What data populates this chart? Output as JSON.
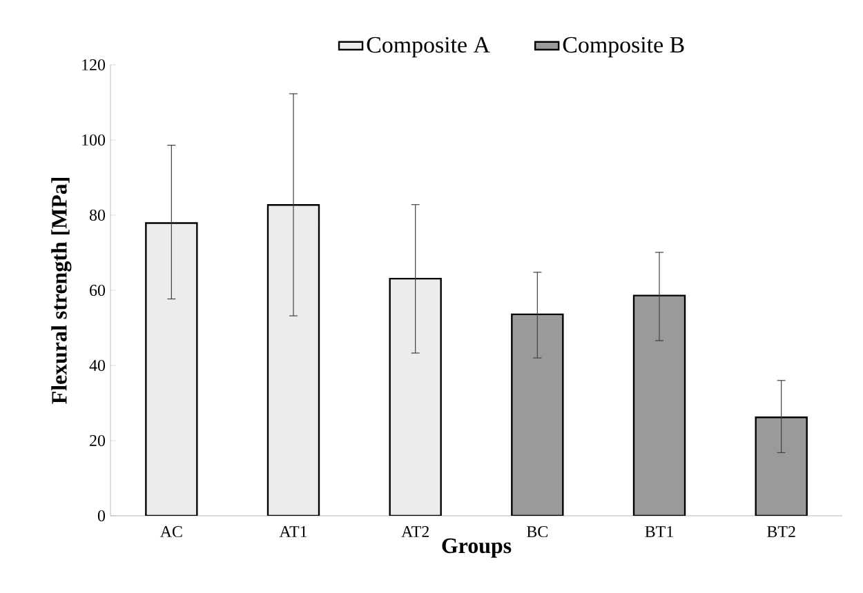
{
  "chart_data": {
    "type": "bar",
    "xlabel": "Groups",
    "ylabel": "Flexural strength [MPa]",
    "categories": [
      "AC",
      "AT1",
      "AT2",
      "BC",
      "BT1",
      "BT2"
    ],
    "series": [
      {
        "name": "Composite A",
        "color": "#ececec",
        "values": [
          77.9,
          82.7,
          63.1,
          null,
          null,
          null
        ],
        "errors": [
          [
            57.7,
            98.6
          ],
          [
            53.2,
            112.3
          ],
          [
            43.3,
            82.8
          ],
          null,
          null,
          null
        ]
      },
      {
        "name": "Composite B",
        "color": "#9a9a9a",
        "values": [
          null,
          null,
          null,
          53.6,
          58.6,
          26.2
        ],
        "errors": [
          null,
          null,
          null,
          [
            42.0,
            64.8
          ],
          [
            46.6,
            70.1
          ],
          [
            16.8,
            36.0
          ]
        ]
      }
    ],
    "ylim": [
      0,
      120
    ],
    "yticks": [
      0,
      20,
      40,
      60,
      80,
      100,
      120
    ],
    "legend": "top",
    "grid": false
  }
}
